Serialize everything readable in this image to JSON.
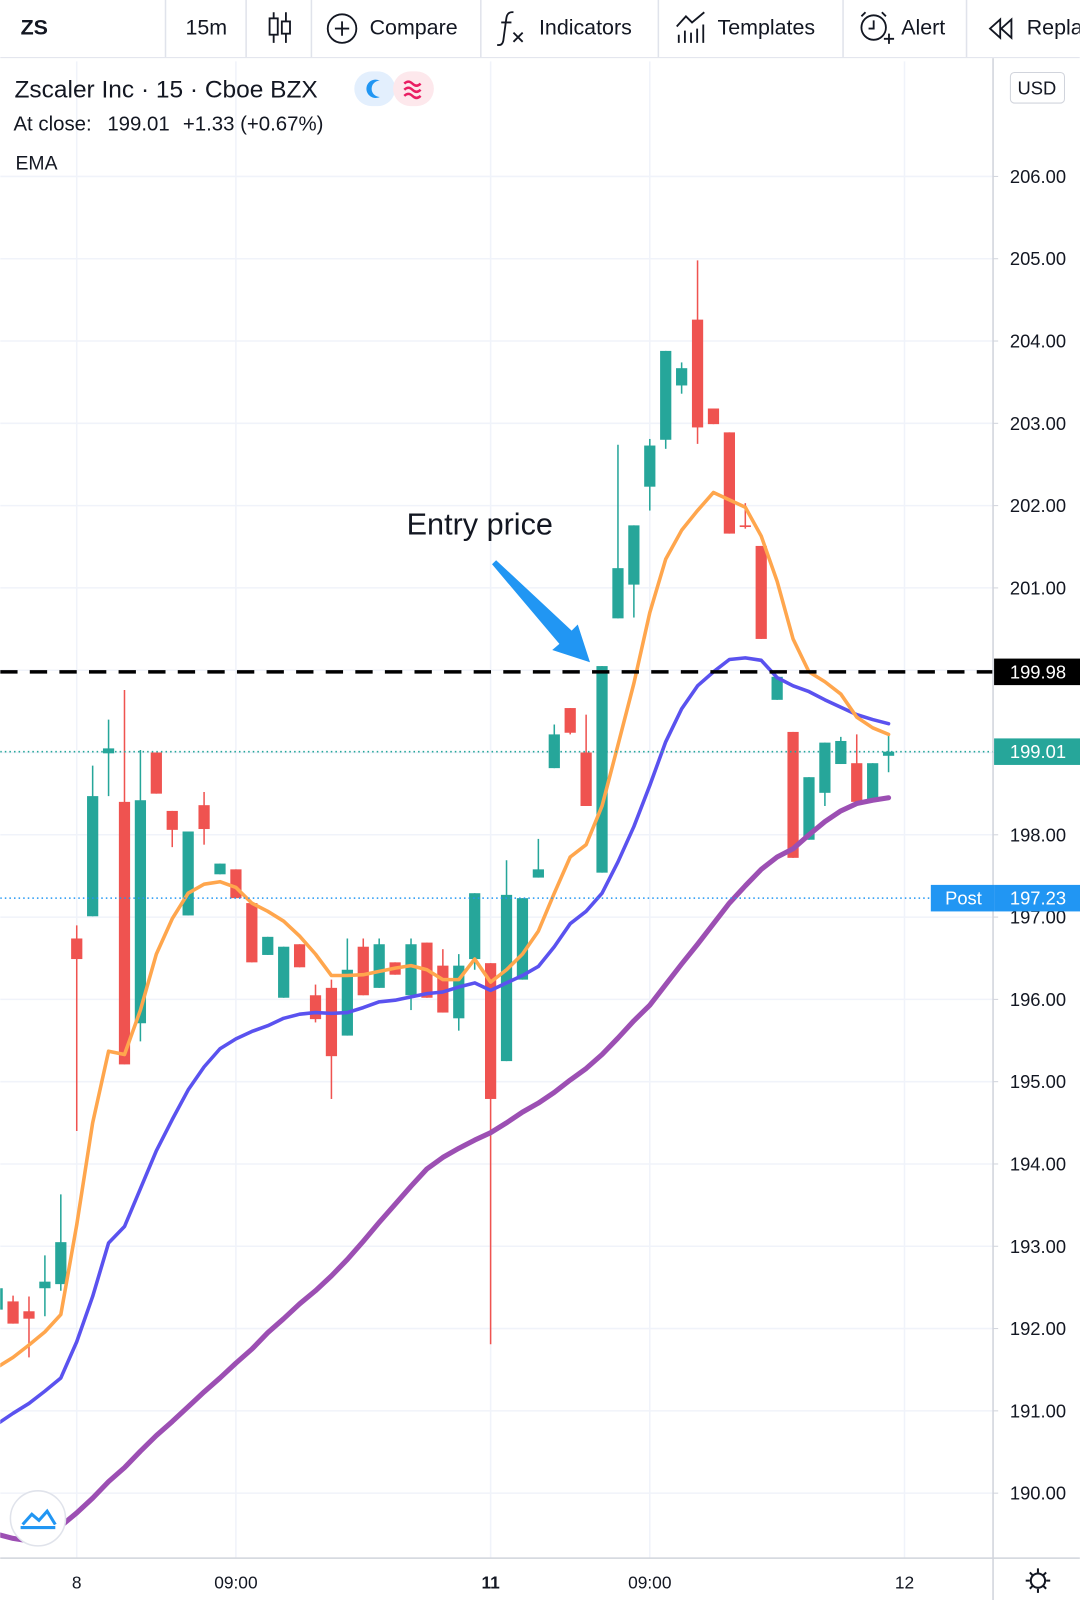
{
  "toolbar": {
    "symbol": "ZS",
    "interval": "15m",
    "compare": "Compare",
    "indicators": "Indicators",
    "templates": "Templates",
    "alert": "Alert",
    "replay": "Replay"
  },
  "chart_data": {
    "type": "candlestick",
    "title": "Zscaler Inc · 15 · Cboe BZX",
    "close_label": "At close:",
    "close_price": 199.01,
    "close_change": "+1.33 (+0.67%)",
    "indicator_label": "EMA",
    "currency": "USD",
    "annotation": "Entry price",
    "categories": [
      null,
      null,
      null,
      null,
      null,
      "8",
      null,
      null,
      null,
      null,
      null,
      null,
      null,
      null,
      null,
      "09:00",
      null,
      null,
      null,
      null,
      null,
      null,
      null,
      null,
      null,
      null,
      null,
      null,
      null,
      null,
      null,
      "11",
      null,
      null,
      null,
      null,
      null,
      null,
      null,
      null,
      null,
      "09:00",
      null,
      null,
      null,
      null,
      null,
      null,
      null,
      null,
      null,
      null,
      null,
      null,
      null,
      null,
      null,
      "12"
    ],
    "open": [
      192.23,
      192.33,
      192.21,
      192.49,
      192.54,
      196.74,
      197.01,
      198.99,
      198.4,
      195.71,
      199.0,
      198.29,
      197.02,
      198.36,
      197.52,
      197.58,
      197.17,
      196.54,
      196.02,
      196.67,
      196.05,
      196.14,
      195.56,
      196.64,
      196.14,
      196.45,
      196.05,
      196.69,
      196.41,
      195.77,
      196.49,
      196.44,
      195.25,
      196.24,
      197.48,
      198.81,
      199.54,
      199.0,
      197.54,
      200.63,
      201.04,
      202.23,
      202.8,
      203.46,
      204.26,
      203.18,
      202.89,
      201.76,
      201.51,
      199.64,
      199.25,
      197.94,
      198.51,
      198.86,
      198.87,
      198.4,
      198.96,
      null
    ],
    "high": [
      192.49,
      192.4,
      192.39,
      192.89,
      193.63,
      196.9,
      198.84,
      199.4,
      199.76,
      199.03,
      199.0,
      198.29,
      198.04,
      198.52,
      197.65,
      197.58,
      197.17,
      196.76,
      196.64,
      196.67,
      196.18,
      196.24,
      196.74,
      196.74,
      196.74,
      196.45,
      196.74,
      196.69,
      196.61,
      196.55,
      197.29,
      196.44,
      197.69,
      197.23,
      197.95,
      199.34,
      199.54,
      199.46,
      200.05,
      202.74,
      201.76,
      202.81,
      203.88,
      203.74,
      204.98,
      203.18,
      202.89,
      202.03,
      201.51,
      199.92,
      199.25,
      198.7,
      199.12,
      199.19,
      199.22,
      198.87,
      199.22,
      null
    ],
    "low": [
      192.23,
      192.06,
      191.65,
      192.15,
      192.46,
      194.4,
      197.01,
      198.47,
      195.21,
      195.49,
      198.5,
      197.85,
      197.02,
      197.88,
      197.52,
      197.23,
      196.45,
      196.54,
      196.02,
      196.39,
      195.72,
      194.79,
      195.56,
      196.05,
      196.14,
      196.3,
      195.87,
      196.02,
      195.84,
      195.62,
      196.36,
      191.81,
      195.25,
      196.24,
      197.48,
      198.81,
      199.22,
      198.35,
      197.54,
      200.63,
      200.64,
      201.94,
      202.69,
      203.36,
      202.75,
      202.99,
      201.66,
      201.72,
      200.38,
      199.64,
      197.72,
      197.94,
      198.35,
      198.86,
      198.35,
      198.4,
      198.76,
      null
    ],
    "close": [
      192.49,
      192.06,
      192.12,
      192.57,
      193.05,
      196.49,
      198.47,
      199.05,
      195.21,
      198.42,
      198.5,
      198.06,
      198.04,
      198.07,
      197.65,
      197.23,
      196.45,
      196.76,
      196.64,
      196.39,
      195.76,
      195.31,
      196.36,
      196.05,
      196.67,
      196.3,
      196.67,
      196.02,
      195.84,
      196.41,
      197.29,
      194.79,
      197.27,
      197.23,
      197.58,
      199.22,
      199.24,
      198.35,
      200.05,
      201.24,
      201.76,
      202.73,
      203.88,
      203.67,
      202.95,
      202.99,
      201.66,
      201.74,
      200.38,
      199.92,
      197.72,
      198.7,
      199.12,
      199.14,
      198.4,
      198.87,
      199.01,
      null
    ],
    "up_color": "#26a69a",
    "down_color": "#ef5350",
    "series": [
      {
        "type": "line",
        "color": "#9c4fb3",
        "width": 5,
        "values": [
          189.5,
          189.45,
          189.42,
          189.44,
          189.6,
          189.76,
          189.94,
          190.14,
          190.31,
          190.51,
          190.7,
          190.87,
          191.05,
          191.23,
          191.4,
          191.58,
          191.75,
          191.95,
          192.12,
          192.3,
          192.46,
          192.64,
          192.84,
          193.06,
          193.29,
          193.51,
          193.73,
          193.94,
          194.08,
          194.19,
          194.29,
          194.38,
          194.5,
          194.63,
          194.74,
          194.87,
          195.02,
          195.16,
          195.33,
          195.53,
          195.74,
          195.93,
          196.18,
          196.43,
          196.67,
          196.92,
          197.17,
          197.38,
          197.58,
          197.73,
          197.83,
          198.0,
          198.16,
          198.29,
          198.38,
          198.42,
          198.45,
          null
        ]
      },
      {
        "type": "line",
        "color": "#5a52ef",
        "width": 3.5,
        "values": [
          190.84,
          190.97,
          191.09,
          191.24,
          191.4,
          191.84,
          192.39,
          193.04,
          193.24,
          193.7,
          194.16,
          194.54,
          194.9,
          195.18,
          195.4,
          195.52,
          195.61,
          195.68,
          195.77,
          195.82,
          195.84,
          195.83,
          195.84,
          195.9,
          195.97,
          195.99,
          196.03,
          196.07,
          196.09,
          196.15,
          196.2,
          196.11,
          196.2,
          196.29,
          196.4,
          196.64,
          196.92,
          197.07,
          197.29,
          197.67,
          198.1,
          198.6,
          199.13,
          199.53,
          199.81,
          199.98,
          200.13,
          200.15,
          200.12,
          199.91,
          199.81,
          199.74,
          199.64,
          199.55,
          199.46,
          199.4,
          199.35,
          null
        ]
      },
      {
        "type": "line",
        "color": "#ffa64d",
        "width": 3.5,
        "values": [
          191.53,
          191.65,
          191.8,
          191.96,
          192.17,
          193.26,
          194.5,
          195.37,
          195.33,
          195.87,
          196.55,
          196.98,
          197.29,
          197.4,
          197.43,
          197.36,
          197.17,
          197.07,
          196.95,
          196.77,
          196.55,
          196.29,
          196.29,
          196.3,
          196.34,
          196.38,
          196.41,
          196.36,
          196.24,
          196.24,
          196.49,
          196.21,
          196.36,
          196.55,
          196.83,
          197.29,
          197.73,
          197.88,
          198.35,
          199.09,
          199.84,
          200.7,
          201.35,
          201.7,
          201.94,
          202.16,
          202.07,
          201.98,
          201.63,
          201.08,
          200.38,
          199.98,
          199.86,
          199.71,
          199.43,
          199.3,
          199.22,
          null
        ]
      }
    ],
    "price_lines": [
      {
        "value": 199.98,
        "color": "#000000",
        "style": "dashed"
      },
      {
        "value": 199.01,
        "color": "#26a69a",
        "style": "dotted"
      },
      {
        "value": 197.23,
        "color": "#2196f3",
        "style": "dotted",
        "name": "Post"
      }
    ],
    "ylim": [
      189.21,
      207.4
    ],
    "yticks": [
      {
        "value": 190,
        "label": "190.00"
      },
      {
        "value": 191,
        "label": "191.00"
      },
      {
        "value": 192,
        "label": "192.00"
      },
      {
        "value": 193,
        "label": "193.00"
      },
      {
        "value": 194,
        "label": "194.00"
      },
      {
        "value": 195,
        "label": "195.00"
      },
      {
        "value": 196,
        "label": "196.00"
      },
      {
        "value": 197,
        "label": "197.00"
      },
      {
        "value": 198,
        "label": "198.00"
      },
      {
        "value": 199,
        "label": "199.00"
      },
      {
        "value": 200,
        "label": "200.00"
      },
      {
        "value": 201,
        "label": "201.00"
      },
      {
        "value": 202,
        "label": "202.00"
      },
      {
        "value": 203,
        "label": "203.00"
      },
      {
        "value": 204,
        "label": "204.00"
      },
      {
        "value": 205,
        "label": "205.00"
      },
      {
        "value": 206,
        "label": "206.00"
      }
    ],
    "grid": true
  }
}
